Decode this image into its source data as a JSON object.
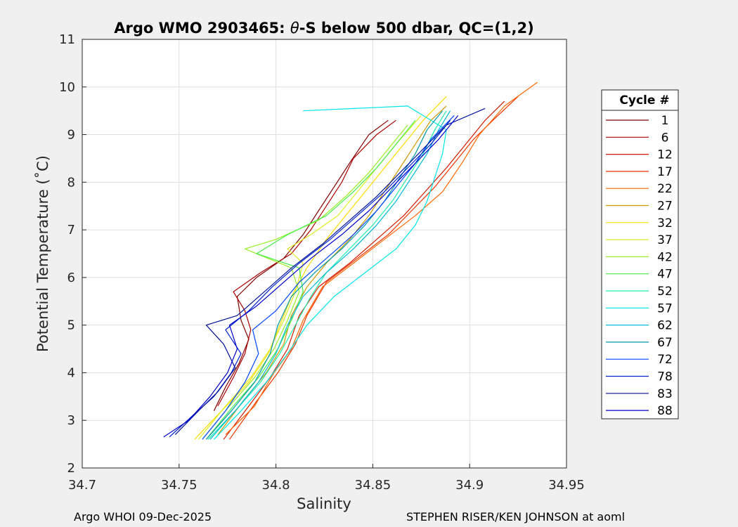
{
  "chart_data": {
    "type": "line",
    "title": "Argo WMO 2903465: θ-S below 500 dbar,  QC=(1,2)",
    "title_prefix": "Argo WMO 2903465: ",
    "title_theta": "θ",
    "title_suffix": "-S below 500 dbar,  QC=(1,2)",
    "xlabel": "Salinity",
    "ylabel": "Potential Temperature (˚C)",
    "xlim": [
      34.7,
      34.95
    ],
    "ylim": [
      2,
      11
    ],
    "xticks": [
      34.7,
      34.75,
      34.8,
      34.85,
      34.9,
      34.95
    ],
    "xtick_labels": [
      "34.7",
      "34.75",
      "34.8",
      "34.85",
      "34.9",
      "34.95"
    ],
    "yticks": [
      2,
      3,
      4,
      5,
      6,
      7,
      8,
      9,
      10,
      11
    ],
    "ytick_labels": [
      "2",
      "3",
      "4",
      "5",
      "6",
      "7",
      "8",
      "9",
      "10",
      "11"
    ],
    "grid": true,
    "legend": {
      "title": "Cycle #",
      "placement": "right",
      "entries": [
        {
          "label": "1",
          "color": "#800000"
        },
        {
          "label": "6",
          "color": "#aa0000"
        },
        {
          "label": "12",
          "color": "#d41a00"
        },
        {
          "label": "17",
          "color": "#ee3300"
        },
        {
          "label": "22",
          "color": "#ff6600"
        },
        {
          "label": "27",
          "color": "#cc9900"
        },
        {
          "label": "32",
          "color": "#ffdd00"
        },
        {
          "label": "37",
          "color": "#ddee22"
        },
        {
          "label": "42",
          "color": "#99ee22"
        },
        {
          "label": "47",
          "color": "#44ee44"
        },
        {
          "label": "52",
          "color": "#22eeaa"
        },
        {
          "label": "57",
          "color": "#00e5e5"
        },
        {
          "label": "62",
          "color": "#00b8d8"
        },
        {
          "label": "67",
          "color": "#0099aa"
        },
        {
          "label": "72",
          "color": "#0044ff"
        },
        {
          "label": "78",
          "color": "#0022cc"
        },
        {
          "label": "83",
          "color": "#001199"
        },
        {
          "label": "88",
          "color": "#0000cc"
        }
      ]
    },
    "series": [
      {
        "label": "1",
        "points": [
          [
            34.768,
            3.2
          ],
          [
            34.774,
            3.7
          ],
          [
            34.781,
            4.2
          ],
          [
            34.786,
            4.7
          ],
          [
            34.782,
            5.1
          ],
          [
            34.78,
            5.6
          ],
          [
            34.79,
            6.0
          ],
          [
            34.804,
            6.4
          ],
          [
            34.814,
            6.9
          ],
          [
            34.822,
            7.4
          ],
          [
            34.83,
            7.9
          ],
          [
            34.838,
            8.4
          ],
          [
            34.848,
            9.0
          ],
          [
            34.858,
            9.3
          ]
        ]
      },
      {
        "label": "6",
        "points": [
          [
            34.77,
            3.3
          ],
          [
            34.778,
            3.9
          ],
          [
            34.784,
            4.4
          ],
          [
            34.787,
            4.9
          ],
          [
            34.784,
            5.3
          ],
          [
            34.778,
            5.7
          ],
          [
            34.792,
            6.1
          ],
          [
            34.808,
            6.5
          ],
          [
            34.818,
            7.0
          ],
          [
            34.826,
            7.5
          ],
          [
            34.834,
            8.0
          ],
          [
            34.84,
            8.5
          ],
          [
            34.852,
            9.0
          ],
          [
            34.862,
            9.3
          ]
        ]
      },
      {
        "label": "12",
        "points": [
          [
            34.773,
            2.6
          ],
          [
            34.786,
            3.3
          ],
          [
            34.797,
            3.9
          ],
          [
            34.806,
            4.5
          ],
          [
            34.812,
            5.2
          ],
          [
            34.822,
            5.8
          ],
          [
            34.838,
            6.3
          ],
          [
            34.852,
            6.8
          ],
          [
            34.866,
            7.3
          ],
          [
            34.877,
            7.8
          ],
          [
            34.888,
            8.3
          ],
          [
            34.898,
            8.8
          ],
          [
            34.908,
            9.3
          ],
          [
            34.918,
            9.7
          ]
        ]
      },
      {
        "label": "17",
        "points": [
          [
            34.776,
            2.6
          ],
          [
            34.79,
            3.4
          ],
          [
            34.801,
            4.0
          ],
          [
            34.81,
            4.6
          ],
          [
            34.816,
            5.2
          ],
          [
            34.826,
            5.9
          ],
          [
            34.842,
            6.4
          ],
          [
            34.858,
            6.9
          ],
          [
            34.87,
            7.4
          ],
          [
            34.882,
            7.9
          ],
          [
            34.892,
            8.4
          ],
          [
            34.902,
            8.9
          ],
          [
            34.912,
            9.3
          ],
          [
            34.925,
            9.8
          ]
        ]
      },
      {
        "label": "22",
        "points": [
          [
            34.774,
            2.7
          ],
          [
            34.789,
            3.3
          ],
          [
            34.799,
            4.0
          ],
          [
            34.808,
            4.5
          ],
          [
            34.814,
            5.1
          ],
          [
            34.824,
            5.8
          ],
          [
            34.84,
            6.3
          ],
          [
            34.856,
            6.8
          ],
          [
            34.872,
            7.3
          ],
          [
            34.886,
            7.8
          ],
          [
            34.896,
            8.4
          ],
          [
            34.905,
            9.0
          ],
          [
            34.918,
            9.6
          ],
          [
            34.935,
            10.1
          ]
        ]
      },
      {
        "label": "27",
        "points": [
          [
            34.77,
            2.7
          ],
          [
            34.783,
            3.4
          ],
          [
            34.795,
            4.0
          ],
          [
            34.804,
            4.6
          ],
          [
            34.808,
            5.2
          ],
          [
            34.816,
            5.8
          ],
          [
            34.826,
            6.3
          ],
          [
            34.838,
            6.8
          ],
          [
            34.848,
            7.3
          ],
          [
            34.856,
            7.8
          ],
          [
            34.864,
            8.3
          ],
          [
            34.872,
            8.8
          ],
          [
            34.88,
            9.3
          ],
          [
            34.888,
            9.6
          ]
        ]
      },
      {
        "label": "32",
        "points": [
          [
            34.758,
            2.6
          ],
          [
            34.772,
            3.2
          ],
          [
            34.786,
            3.8
          ],
          [
            34.796,
            4.4
          ],
          [
            34.802,
            5.0
          ],
          [
            34.808,
            5.6
          ],
          [
            34.816,
            6.2
          ],
          [
            34.826,
            6.8
          ],
          [
            34.836,
            7.3
          ],
          [
            34.846,
            7.8
          ],
          [
            34.856,
            8.3
          ],
          [
            34.866,
            8.8
          ],
          [
            34.876,
            9.3
          ],
          [
            34.888,
            9.8
          ]
        ]
      },
      {
        "label": "37",
        "points": [
          [
            34.76,
            2.6
          ],
          [
            34.774,
            3.3
          ],
          [
            34.787,
            3.9
          ],
          [
            34.797,
            4.5
          ],
          [
            34.804,
            5.1
          ],
          [
            34.81,
            5.7
          ],
          [
            34.814,
            6.3
          ],
          [
            34.806,
            6.6
          ],
          [
            34.818,
            6.9
          ],
          [
            34.832,
            7.3
          ],
          [
            34.842,
            7.8
          ],
          [
            34.852,
            8.3
          ],
          [
            34.862,
            8.8
          ],
          [
            34.875,
            9.4
          ]
        ]
      },
      {
        "label": "42",
        "points": [
          [
            34.762,
            2.6
          ],
          [
            34.776,
            3.3
          ],
          [
            34.789,
            3.9
          ],
          [
            34.799,
            4.5
          ],
          [
            34.806,
            5.1
          ],
          [
            34.812,
            5.7
          ],
          [
            34.808,
            6.2
          ],
          [
            34.784,
            6.6
          ],
          [
            34.8,
            6.8
          ],
          [
            34.822,
            7.2
          ],
          [
            34.836,
            7.7
          ],
          [
            34.848,
            8.2
          ],
          [
            34.858,
            8.7
          ],
          [
            34.868,
            9.2
          ]
        ]
      },
      {
        "label": "47",
        "points": [
          [
            34.764,
            2.6
          ],
          [
            34.778,
            3.3
          ],
          [
            34.791,
            3.9
          ],
          [
            34.801,
            4.5
          ],
          [
            34.808,
            5.1
          ],
          [
            34.814,
            5.7
          ],
          [
            34.812,
            6.2
          ],
          [
            34.79,
            6.5
          ],
          [
            34.806,
            6.9
          ],
          [
            34.826,
            7.3
          ],
          [
            34.84,
            7.8
          ],
          [
            34.852,
            8.3
          ],
          [
            34.862,
            8.8
          ],
          [
            34.872,
            9.3
          ]
        ]
      },
      {
        "label": "52",
        "points": [
          [
            34.765,
            2.6
          ],
          [
            34.779,
            3.2
          ],
          [
            34.792,
            3.8
          ],
          [
            34.802,
            4.4
          ],
          [
            34.81,
            5.0
          ],
          [
            34.818,
            5.6
          ],
          [
            34.826,
            6.1
          ],
          [
            34.838,
            6.6
          ],
          [
            34.85,
            7.1
          ],
          [
            34.86,
            7.6
          ],
          [
            34.868,
            8.1
          ],
          [
            34.876,
            8.6
          ],
          [
            34.882,
            9.1
          ],
          [
            34.888,
            9.5
          ]
        ]
      },
      {
        "label": "57",
        "points": [
          [
            34.768,
            2.6
          ],
          [
            34.782,
            3.2
          ],
          [
            34.795,
            3.8
          ],
          [
            34.806,
            4.4
          ],
          [
            34.816,
            5.0
          ],
          [
            34.83,
            5.6
          ],
          [
            34.846,
            6.1
          ],
          [
            34.862,
            6.6
          ],
          [
            34.872,
            7.1
          ],
          [
            34.878,
            7.6
          ],
          [
            34.882,
            8.1
          ],
          [
            34.886,
            8.6
          ],
          [
            34.888,
            9.1
          ],
          [
            34.868,
            9.6
          ],
          [
            34.814,
            9.5
          ]
        ]
      },
      {
        "label": "62",
        "points": [
          [
            34.766,
            2.6
          ],
          [
            34.779,
            3.2
          ],
          [
            34.791,
            3.8
          ],
          [
            34.8,
            4.4
          ],
          [
            34.806,
            5.0
          ],
          [
            34.814,
            5.6
          ],
          [
            34.826,
            6.1
          ],
          [
            34.84,
            6.6
          ],
          [
            34.852,
            7.1
          ],
          [
            34.862,
            7.6
          ],
          [
            34.87,
            8.1
          ],
          [
            34.878,
            8.6
          ],
          [
            34.884,
            9.1
          ],
          [
            34.89,
            9.5
          ]
        ]
      },
      {
        "label": "67",
        "points": [
          [
            34.764,
            2.6
          ],
          [
            34.777,
            3.2
          ],
          [
            34.789,
            3.8
          ],
          [
            34.797,
            4.4
          ],
          [
            34.801,
            5.0
          ],
          [
            34.808,
            5.6
          ],
          [
            34.82,
            6.1
          ],
          [
            34.834,
            6.6
          ],
          [
            34.846,
            7.1
          ],
          [
            34.856,
            7.6
          ],
          [
            34.864,
            8.1
          ],
          [
            34.872,
            8.6
          ],
          [
            34.878,
            9.1
          ],
          [
            34.886,
            9.5
          ]
        ]
      },
      {
        "label": "72",
        "points": [
          [
            34.762,
            2.6
          ],
          [
            34.774,
            3.2
          ],
          [
            34.784,
            3.8
          ],
          [
            34.791,
            4.4
          ],
          [
            34.788,
            4.9
          ],
          [
            34.8,
            5.3
          ],
          [
            34.812,
            5.9
          ],
          [
            34.826,
            6.4
          ],
          [
            34.84,
            6.9
          ],
          [
            34.852,
            7.4
          ],
          [
            34.862,
            7.9
          ],
          [
            34.872,
            8.4
          ],
          [
            34.88,
            8.9
          ],
          [
            34.892,
            9.4
          ]
        ]
      },
      {
        "label": "78",
        "points": [
          [
            34.745,
            2.65
          ],
          [
            34.757,
            3.1
          ],
          [
            34.768,
            3.5
          ],
          [
            34.777,
            4.0
          ],
          [
            34.782,
            4.4
          ],
          [
            34.774,
            4.9
          ],
          [
            34.786,
            5.3
          ],
          [
            34.798,
            5.8
          ],
          [
            34.812,
            6.3
          ],
          [
            34.828,
            6.8
          ],
          [
            34.842,
            7.3
          ],
          [
            34.856,
            7.8
          ],
          [
            34.868,
            8.3
          ],
          [
            34.88,
            8.8
          ],
          [
            34.89,
            9.3
          ]
        ]
      },
      {
        "label": "83",
        "points": [
          [
            34.748,
            2.7
          ],
          [
            34.76,
            3.2
          ],
          [
            34.77,
            3.6
          ],
          [
            34.779,
            4.1
          ],
          [
            34.773,
            4.6
          ],
          [
            34.764,
            5.0
          ],
          [
            34.78,
            5.2
          ],
          [
            34.794,
            5.7
          ],
          [
            34.808,
            6.2
          ],
          [
            34.824,
            6.7
          ],
          [
            34.838,
            7.2
          ],
          [
            34.852,
            7.7
          ],
          [
            34.864,
            8.2
          ],
          [
            34.876,
            8.7
          ],
          [
            34.888,
            9.2
          ],
          [
            34.908,
            9.55
          ]
        ]
      },
      {
        "label": "88",
        "points": [
          [
            34.742,
            2.65
          ],
          [
            34.755,
            3.0
          ],
          [
            34.766,
            3.5
          ],
          [
            34.775,
            4.0
          ],
          [
            34.78,
            4.5
          ],
          [
            34.776,
            5.0
          ],
          [
            34.79,
            5.4
          ],
          [
            34.804,
            5.9
          ],
          [
            34.818,
            6.4
          ],
          [
            34.834,
            6.9
          ],
          [
            34.848,
            7.4
          ],
          [
            34.86,
            7.9
          ],
          [
            34.872,
            8.4
          ],
          [
            34.884,
            8.9
          ],
          [
            34.894,
            9.4
          ]
        ]
      }
    ]
  },
  "footer": {
    "left": "Argo WHOI 09-Dec-2025",
    "right": "STEPHEN RISER/KEN JOHNSON at aoml"
  }
}
